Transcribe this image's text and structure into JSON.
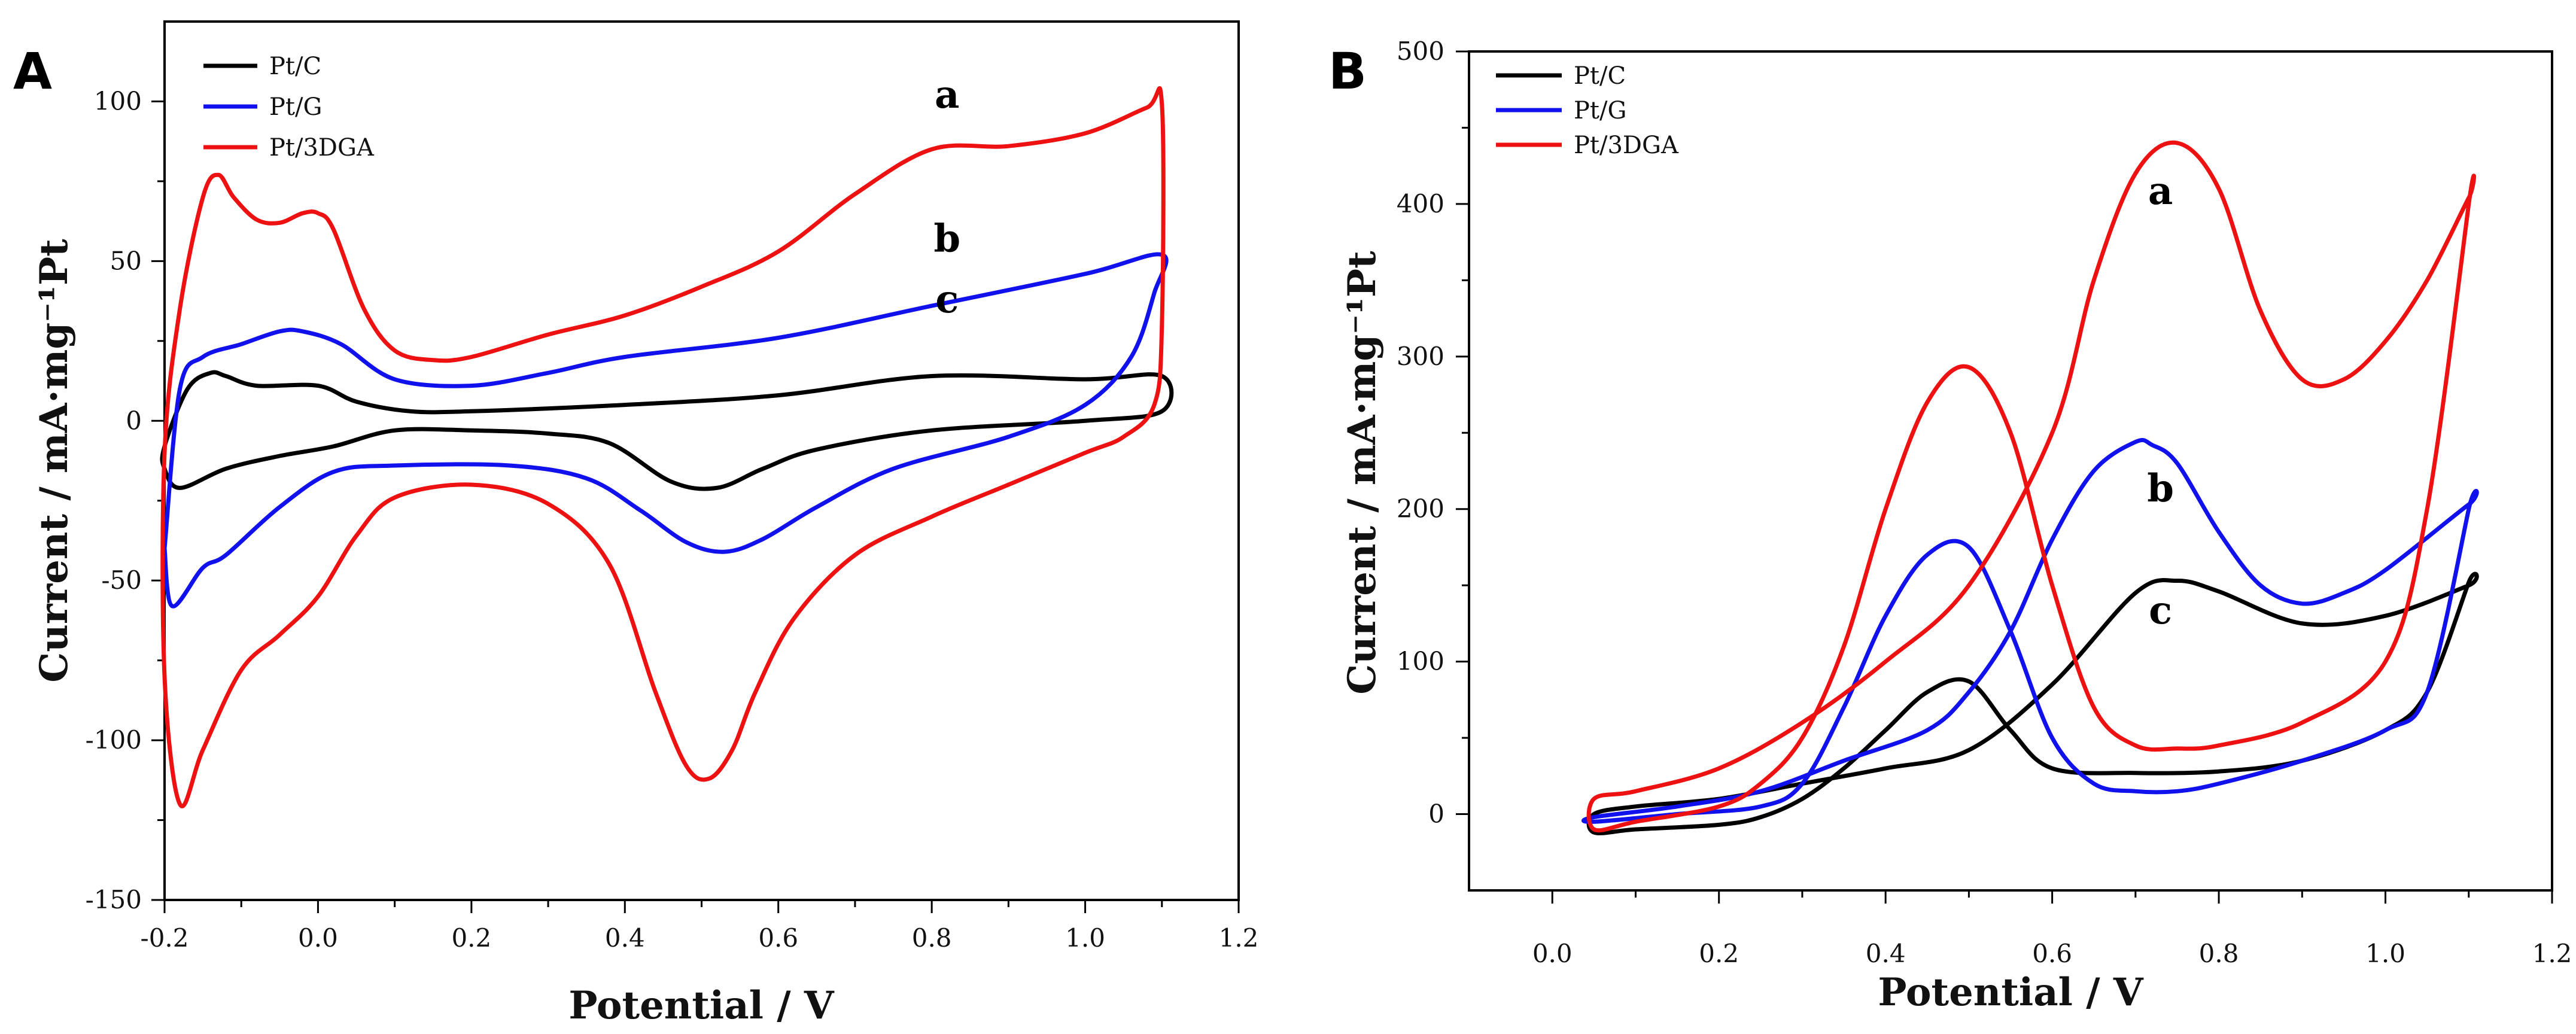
{
  "chart_data": [
    {
      "type": "line",
      "panel": "A",
      "xlabel": "Potential / V",
      "ylabel": "Current / mA·mg⁻¹Pt",
      "xlim": [
        -0.2,
        1.2
      ],
      "ylim": [
        -150,
        125
      ],
      "xticks": [
        -0.2,
        0.0,
        0.2,
        0.4,
        0.6,
        0.8,
        1.0,
        1.2
      ],
      "xtick_labels": [
        "-0.2",
        "0.0",
        "0.2",
        "0.4",
        "0.6",
        "0.8",
        "1.0",
        "1.2"
      ],
      "yticks": [
        -150,
        -100,
        -50,
        0,
        50,
        100
      ],
      "ytick_labels": [
        "-150",
        "-100",
        "-50",
        "0",
        "50",
        "100"
      ],
      "legend": [
        "Pt/C",
        "Pt/G",
        "Pt/3DGA"
      ],
      "curve_labels": [
        {
          "label": "a",
          "series": "Pt/3DGA",
          "x": 0.82,
          "y": 98
        },
        {
          "label": "b",
          "series": "Pt/G",
          "x": 0.82,
          "y": 53
        },
        {
          "label": "c",
          "series": "Pt/C",
          "x": 0.82,
          "y": 34
        }
      ],
      "series": [
        {
          "name": "Pt/C",
          "color": "#000000",
          "x": [
            -0.2,
            -0.17,
            -0.14,
            -0.12,
            -0.08,
            0.0,
            0.05,
            0.12,
            0.2,
            0.4,
            0.6,
            0.8,
            1.0,
            1.1,
            1.1,
            1.0,
            0.8,
            0.65,
            0.58,
            0.52,
            0.46,
            0.38,
            0.3,
            0.2,
            0.1,
            0.02,
            -0.05,
            -0.12,
            -0.18,
            -0.2
          ],
          "y": [
            -8,
            10,
            15,
            14,
            11,
            11,
            6,
            3,
            3,
            5,
            8,
            14,
            13,
            14,
            3,
            0,
            -3,
            -9,
            -15,
            -21,
            -19,
            -7,
            -4,
            -3,
            -3,
            -8,
            -11,
            -15,
            -21,
            -15
          ]
        },
        {
          "name": "Pt/G",
          "color": "#1111ee",
          "x": [
            -0.2,
            -0.18,
            -0.15,
            -0.1,
            -0.05,
            -0.02,
            0.03,
            0.1,
            0.2,
            0.3,
            0.4,
            0.6,
            0.8,
            1.0,
            1.1,
            1.09,
            1.06,
            1.0,
            0.9,
            0.75,
            0.65,
            0.58,
            0.53,
            0.48,
            0.42,
            0.35,
            0.25,
            0.1,
            0.02,
            -0.05,
            -0.12,
            -0.15,
            -0.19,
            -0.2
          ],
          "y": [
            -40,
            10,
            20,
            24,
            28,
            28,
            24,
            13,
            11,
            15,
            20,
            26,
            36,
            46,
            52,
            40,
            20,
            5,
            -5,
            -15,
            -27,
            -37,
            -41,
            -38,
            -28,
            -18,
            -14,
            -14,
            -16,
            -27,
            -42,
            -46,
            -58,
            -40
          ]
        },
        {
          "name": "Pt/3DGA",
          "color": "#ee1111",
          "x": [
            -0.2,
            -0.18,
            -0.15,
            -0.13,
            -0.11,
            -0.08,
            -0.05,
            -0.02,
            0.0,
            0.02,
            0.06,
            0.1,
            0.15,
            0.2,
            0.3,
            0.4,
            0.5,
            0.6,
            0.7,
            0.8,
            0.9,
            1.0,
            1.08,
            1.1,
            1.1,
            1.09,
            1.05,
            1.0,
            0.9,
            0.8,
            0.7,
            0.62,
            0.57,
            0.54,
            0.51,
            0.48,
            0.44,
            0.38,
            0.3,
            0.2,
            0.1,
            0.05,
            0.0,
            -0.05,
            -0.1,
            -0.15,
            -0.18,
            -0.2
          ],
          "y": [
            -10,
            35,
            70,
            77,
            70,
            63,
            62,
            65,
            65,
            60,
            35,
            22,
            19,
            20,
            27,
            33,
            42,
            53,
            71,
            85,
            86,
            90,
            98,
            99,
            30,
            5,
            -5,
            -10,
            -20,
            -30,
            -42,
            -62,
            -85,
            -103,
            -112,
            -108,
            -85,
            -45,
            -26,
            -20,
            -24,
            -36,
            -55,
            -67,
            -78,
            -103,
            -120,
            -80
          ]
        }
      ]
    },
    {
      "type": "line",
      "panel": "B",
      "xlabel": "Potential / V",
      "ylabel": "Current / mA·mg⁻¹Pt",
      "xlim": [
        -0.1,
        1.2
      ],
      "ylim": [
        -50,
        500
      ],
      "xticks": [
        0.0,
        0.2,
        0.4,
        0.6,
        0.8,
        1.0,
        1.2
      ],
      "xtick_labels": [
        "0.0",
        "0.2",
        "0.4",
        "0.6",
        "0.8",
        "1.0",
        "1.2"
      ],
      "yticks": [
        0,
        100,
        200,
        300,
        400,
        500
      ],
      "ytick_labels": [
        "0",
        "100",
        "200",
        "300",
        "400",
        "500"
      ],
      "legend": [
        "Pt/C",
        "Pt/G",
        "Pt/3DGA"
      ],
      "curve_labels": [
        {
          "label": "a",
          "series": "Pt/3DGA",
          "x": 0.73,
          "y": 400
        },
        {
          "label": "b",
          "series": "Pt/G",
          "x": 0.73,
          "y": 205
        },
        {
          "label": "c",
          "series": "Pt/C",
          "x": 0.73,
          "y": 125
        }
      ],
      "series": [
        {
          "name": "Pt/C",
          "color": "#000000",
          "x": [
            0.05,
            0.1,
            0.2,
            0.3,
            0.4,
            0.5,
            0.6,
            0.7,
            0.75,
            0.8,
            0.9,
            1.0,
            1.1,
            1.1,
            1.05,
            1.0,
            0.9,
            0.8,
            0.7,
            0.6,
            0.55,
            0.5,
            0.45,
            0.4,
            0.35,
            0.3,
            0.25,
            0.2,
            0.1,
            0.05
          ],
          "y": [
            0,
            5,
            10,
            20,
            30,
            42,
            85,
            145,
            153,
            146,
            125,
            130,
            150,
            152,
            80,
            55,
            35,
            28,
            27,
            30,
            55,
            87,
            80,
            55,
            30,
            10,
            -2,
            -7,
            -10,
            -12
          ]
        },
        {
          "name": "Pt/G",
          "color": "#1111ee",
          "x": [
            0.05,
            0.15,
            0.25,
            0.35,
            0.45,
            0.5,
            0.55,
            0.6,
            0.65,
            0.7,
            0.72,
            0.75,
            0.8,
            0.85,
            0.9,
            0.95,
            1.0,
            1.1,
            1.1,
            1.05,
            1.0,
            0.9,
            0.8,
            0.75,
            0.7,
            0.65,
            0.6,
            0.55,
            0.5,
            0.45,
            0.4,
            0.35,
            0.3,
            0.25,
            0.15,
            0.05
          ],
          "y": [
            -2,
            5,
            15,
            35,
            55,
            80,
            120,
            180,
            225,
            244,
            242,
            230,
            185,
            150,
            138,
            145,
            160,
            203,
            200,
            80,
            55,
            35,
            20,
            15,
            15,
            20,
            50,
            120,
            175,
            170,
            130,
            70,
            20,
            5,
            0,
            -5
          ]
        },
        {
          "name": "Pt/3DGA",
          "color": "#ee1111",
          "x": [
            0.05,
            0.1,
            0.2,
            0.3,
            0.4,
            0.5,
            0.6,
            0.65,
            0.7,
            0.75,
            0.8,
            0.85,
            0.9,
            0.95,
            1.0,
            1.05,
            1.1,
            1.1,
            1.05,
            1.0,
            0.9,
            0.8,
            0.75,
            0.7,
            0.65,
            0.6,
            0.55,
            0.5,
            0.45,
            0.4,
            0.35,
            0.3,
            0.25,
            0.2,
            0.1,
            0.05
          ],
          "y": [
            10,
            15,
            30,
            60,
            100,
            150,
            250,
            350,
            420,
            440,
            410,
            330,
            285,
            285,
            310,
            350,
            404,
            400,
            200,
            100,
            60,
            45,
            43,
            45,
            70,
            150,
            250,
            293,
            270,
            200,
            110,
            50,
            20,
            5,
            -5,
            -10
          ]
        }
      ]
    }
  ]
}
